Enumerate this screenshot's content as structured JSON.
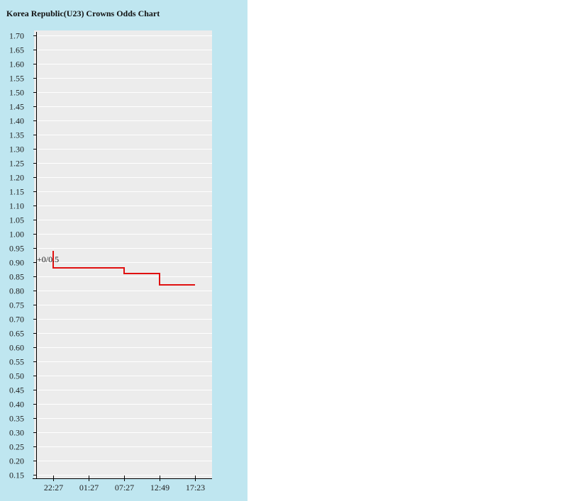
{
  "chart_data": {
    "type": "line",
    "step": true,
    "title": "Korea Republic(U23) Crowns Odds Chart",
    "xlabel": "",
    "ylabel": "",
    "ylim": [
      0.15,
      1.7
    ],
    "y_ticks": [
      "0.15",
      "0.20",
      "0.25",
      "0.30",
      "0.35",
      "0.40",
      "0.45",
      "0.50",
      "0.55",
      "0.60",
      "0.65",
      "0.70",
      "0.75",
      "0.80",
      "0.85",
      "0.90",
      "0.95",
      "1.00",
      "1.05",
      "1.10",
      "1.15",
      "1.20",
      "1.25",
      "1.30",
      "1.35",
      "1.40",
      "1.45",
      "1.50",
      "1.55",
      "1.60",
      "1.65",
      "1.70"
    ],
    "x_ticks": [
      "22:27",
      "01:27",
      "07:27",
      "12:49",
      "17:23"
    ],
    "grid": true,
    "series": [
      {
        "color": "#e01010",
        "x": [
          "22:27",
          "22:27",
          "07:27",
          "12:49",
          "17:23"
        ],
        "values": [
          0.94,
          0.88,
          0.86,
          0.82,
          0.82
        ]
      }
    ],
    "annotations": [
      {
        "text": "+0/0.5",
        "x": "22:27",
        "y": 0.91
      }
    ]
  },
  "colors": {
    "panel_background": "#bfe6f0",
    "plot_background": "#ececec",
    "gridline": "#ffffff",
    "axis": "#000000",
    "line": "#e01010"
  }
}
